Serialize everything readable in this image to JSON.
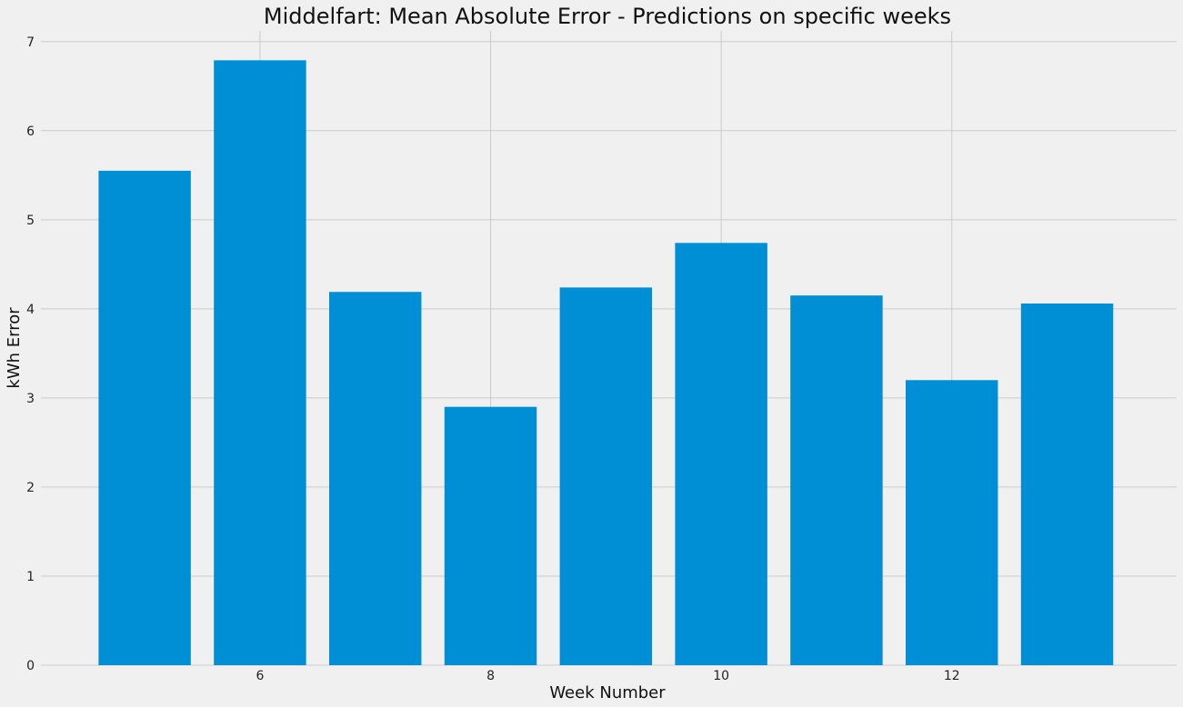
{
  "chart_data": {
    "type": "bar",
    "title": "Middelfart: Mean Absolute Error - Predictions on specific weeks",
    "xlabel": "Week Number",
    "ylabel": "kWh Error",
    "x": [
      5,
      6,
      7,
      8,
      9,
      10,
      11,
      12,
      13
    ],
    "values": [
      5.55,
      6.79,
      4.19,
      2.9,
      4.24,
      4.74,
      4.15,
      3.2,
      4.06
    ],
    "xlim": [
      4.1,
      13.95
    ],
    "ylim": [
      0,
      7.12
    ],
    "xticks": [
      6,
      8,
      10,
      12
    ],
    "yticks": [
      0,
      1,
      2,
      3,
      4,
      5,
      6,
      7
    ],
    "grid": true,
    "bar_color": "#008fd5",
    "background_color": "#f0f0f0",
    "grid_color": "#cbcbcb"
  }
}
